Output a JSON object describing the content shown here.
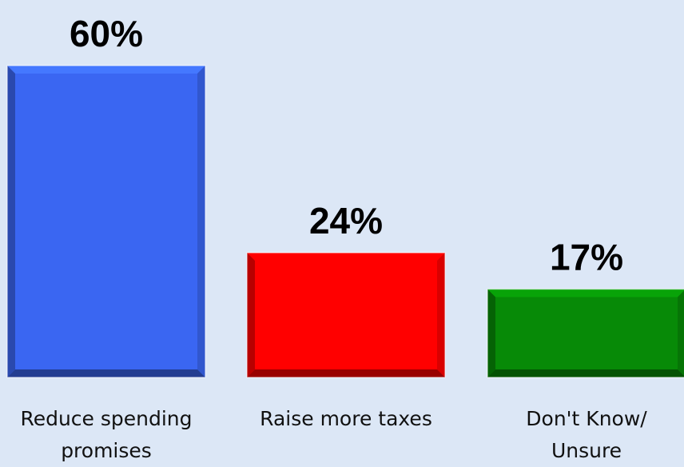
{
  "chart_data": {
    "type": "bar",
    "categories": [
      "Reduce spending promises",
      "Raise more taxes",
      "Don't Know/ Unsure"
    ],
    "category_lines": [
      [
        "Reduce spending",
        "promises"
      ],
      [
        "Raise more taxes"
      ],
      [
        "Don't Know/",
        "Unsure"
      ]
    ],
    "values": [
      60,
      24,
      17
    ],
    "value_labels": [
      "60%",
      "24%",
      "17%"
    ],
    "colors": [
      "#3a66f2",
      "#ff0000",
      "#078a07"
    ],
    "title": "",
    "xlabel": "",
    "ylabel": "",
    "ylim": [
      0,
      60
    ],
    "grid": false,
    "legend": "none"
  }
}
